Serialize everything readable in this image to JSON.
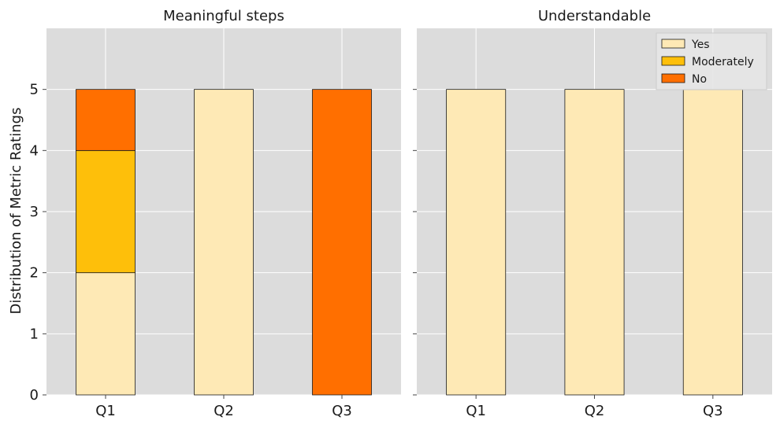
{
  "chart_data": {
    "type": "bar",
    "stacked": true,
    "ylabel": "Distribution of Metric Ratings",
    "ylim": [
      0,
      6
    ],
    "yticks": [
      0,
      1,
      2,
      3,
      4,
      5
    ],
    "grid": true,
    "colors": {
      "Yes": "#FEE9B5",
      "Moderately": "#FEBF0A",
      "No": "#FF6F00",
      "background": "#DCDCDC",
      "edge": "#1a1a1a"
    },
    "legend": {
      "placement": "top-right",
      "entries": [
        "Yes",
        "Moderately",
        "No"
      ]
    },
    "panels": [
      {
        "title": "Meaningful steps",
        "categories": [
          "Q1",
          "Q2",
          "Q3"
        ],
        "series": [
          {
            "name": "Yes",
            "values": [
              2,
              5,
              0
            ]
          },
          {
            "name": "Moderately",
            "values": [
              2,
              0,
              0
            ]
          },
          {
            "name": "No",
            "values": [
              1,
              0,
              5
            ]
          }
        ]
      },
      {
        "title": "Understandable",
        "categories": [
          "Q1",
          "Q2",
          "Q3"
        ],
        "series": [
          {
            "name": "Yes",
            "values": [
              5,
              5,
              5
            ]
          },
          {
            "name": "Moderately",
            "values": [
              0,
              0,
              0
            ]
          },
          {
            "name": "No",
            "values": [
              0,
              0,
              0
            ]
          }
        ]
      }
    ]
  }
}
